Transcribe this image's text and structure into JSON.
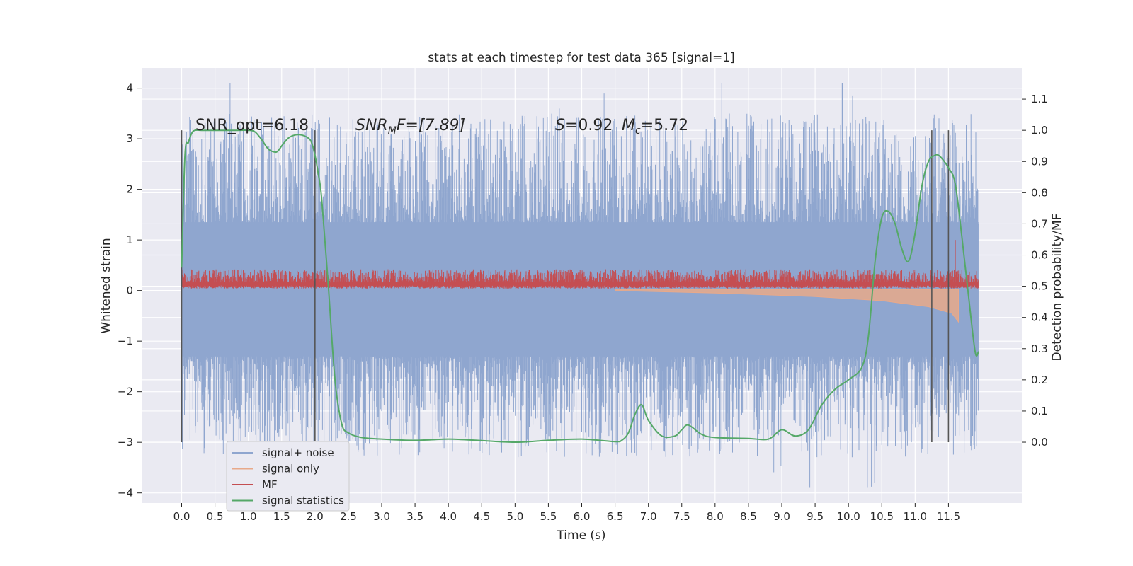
{
  "chart_data": {
    "type": "line",
    "title": "stats at each timestep for test data 365 [signal=1]",
    "xlabel": "Time (s)",
    "ylabel": "Whitened strain",
    "y2label": "Detection probability/MF",
    "xlim": [
      -0.6,
      12.6
    ],
    "ylim": [
      -4.2,
      4.4
    ],
    "y2lim": [
      -0.195,
      1.2
    ],
    "xticks": [
      "0.0",
      "0.5",
      "1.0",
      "1.5",
      "2.0",
      "2.5",
      "3.0",
      "3.5",
      "4.0",
      "4.5",
      "5.0",
      "5.5",
      "6.0",
      "6.5",
      "7.0",
      "7.5",
      "8.0",
      "8.5",
      "9.0",
      "9.5",
      "10.0",
      "10.5",
      "11.0",
      "11.5"
    ],
    "yticks": [
      "4",
      "3",
      "2",
      "1",
      "0",
      "−1",
      "−2",
      "−3",
      "−4"
    ],
    "y2ticks": [
      "1.1",
      "1.0",
      "0.9",
      "0.8",
      "0.7",
      "0.6",
      "0.5",
      "0.4",
      "0.3",
      "0.2",
      "0.1",
      "0.0"
    ],
    "grid": true,
    "legend_position": "bottom-left",
    "annotations": {
      "snr_opt": "SNR_opt=6.18",
      "snr_mf_prefix": "SNR",
      "snr_mf_sub": "M",
      "snr_mf_suffix": "F=[7.89]",
      "s_label": "S",
      "s_value": "=0.92",
      "mc_label": "M",
      "mc_sub": "c",
      "mc_value": "=5.72"
    },
    "vertical_lines_x": [
      0.0,
      2.0,
      11.25,
      11.5
    ],
    "series": [
      {
        "name": "signal+ noise",
        "color": "#8fa6cf",
        "kind": "noise_band",
        "x_range": [
          0.0,
          11.95
        ],
        "amplitude_range": [
          -3.9,
          4.1
        ]
      },
      {
        "name": "signal only",
        "color": "#e8a98a",
        "kind": "chirp",
        "x_range": [
          6.5,
          11.65
        ],
        "values": [
          [
            6.5,
            0.0
          ],
          [
            8.0,
            -0.05
          ],
          [
            9.5,
            -0.12
          ],
          [
            10.5,
            -0.2
          ],
          [
            11.2,
            -0.32
          ],
          [
            11.55,
            -0.45
          ],
          [
            11.65,
            -0.62
          ]
        ]
      },
      {
        "name": "MF",
        "color": "#c44e52",
        "kind": "noise_band",
        "x_range": [
          0.0,
          11.95
        ],
        "amplitude_range": [
          0.0,
          0.42
        ],
        "spike": [
          11.6,
          1.0
        ]
      },
      {
        "name": "signal statistics",
        "color": "#55a868",
        "axis": "right",
        "x": [
          0.0,
          0.05,
          0.1,
          0.15,
          0.2,
          0.3,
          0.5,
          0.8,
          1.0,
          1.1,
          1.2,
          1.3,
          1.4,
          1.45,
          1.5,
          1.6,
          1.7,
          1.8,
          1.9,
          1.95,
          2.0,
          2.05,
          2.1,
          2.2,
          2.3,
          2.4,
          2.5,
          2.7,
          3.0,
          3.5,
          4.0,
          4.5,
          5.0,
          5.5,
          6.0,
          6.5,
          6.6,
          6.7,
          6.8,
          6.9,
          7.0,
          7.2,
          7.4,
          7.5,
          7.6,
          7.8,
          8.0,
          8.5,
          8.8,
          9.0,
          9.2,
          9.4,
          9.6,
          9.8,
          10.0,
          10.2,
          10.3,
          10.4,
          10.5,
          10.6,
          10.7,
          10.8,
          10.9,
          11.0,
          11.1,
          11.2,
          11.3,
          11.35,
          11.4,
          11.5,
          11.6,
          11.7,
          11.8,
          11.9,
          11.95
        ],
        "values": [
          0.56,
          0.92,
          0.96,
          0.99,
          1.0,
          1.0,
          1.0,
          1.0,
          1.0,
          0.995,
          0.97,
          0.94,
          0.93,
          0.935,
          0.95,
          0.975,
          0.985,
          0.985,
          0.975,
          0.96,
          0.92,
          0.86,
          0.78,
          0.5,
          0.2,
          0.06,
          0.03,
          0.015,
          0.01,
          0.006,
          0.01,
          0.005,
          0.0,
          0.006,
          0.01,
          0.002,
          0.006,
          0.03,
          0.09,
          0.12,
          0.07,
          0.02,
          0.02,
          0.04,
          0.055,
          0.025,
          0.015,
          0.012,
          0.01,
          0.04,
          0.02,
          0.04,
          0.12,
          0.17,
          0.2,
          0.24,
          0.34,
          0.58,
          0.72,
          0.74,
          0.7,
          0.62,
          0.58,
          0.67,
          0.82,
          0.9,
          0.92,
          0.92,
          0.91,
          0.88,
          0.83,
          0.66,
          0.47,
          0.29,
          0.29
        ]
      }
    ]
  }
}
